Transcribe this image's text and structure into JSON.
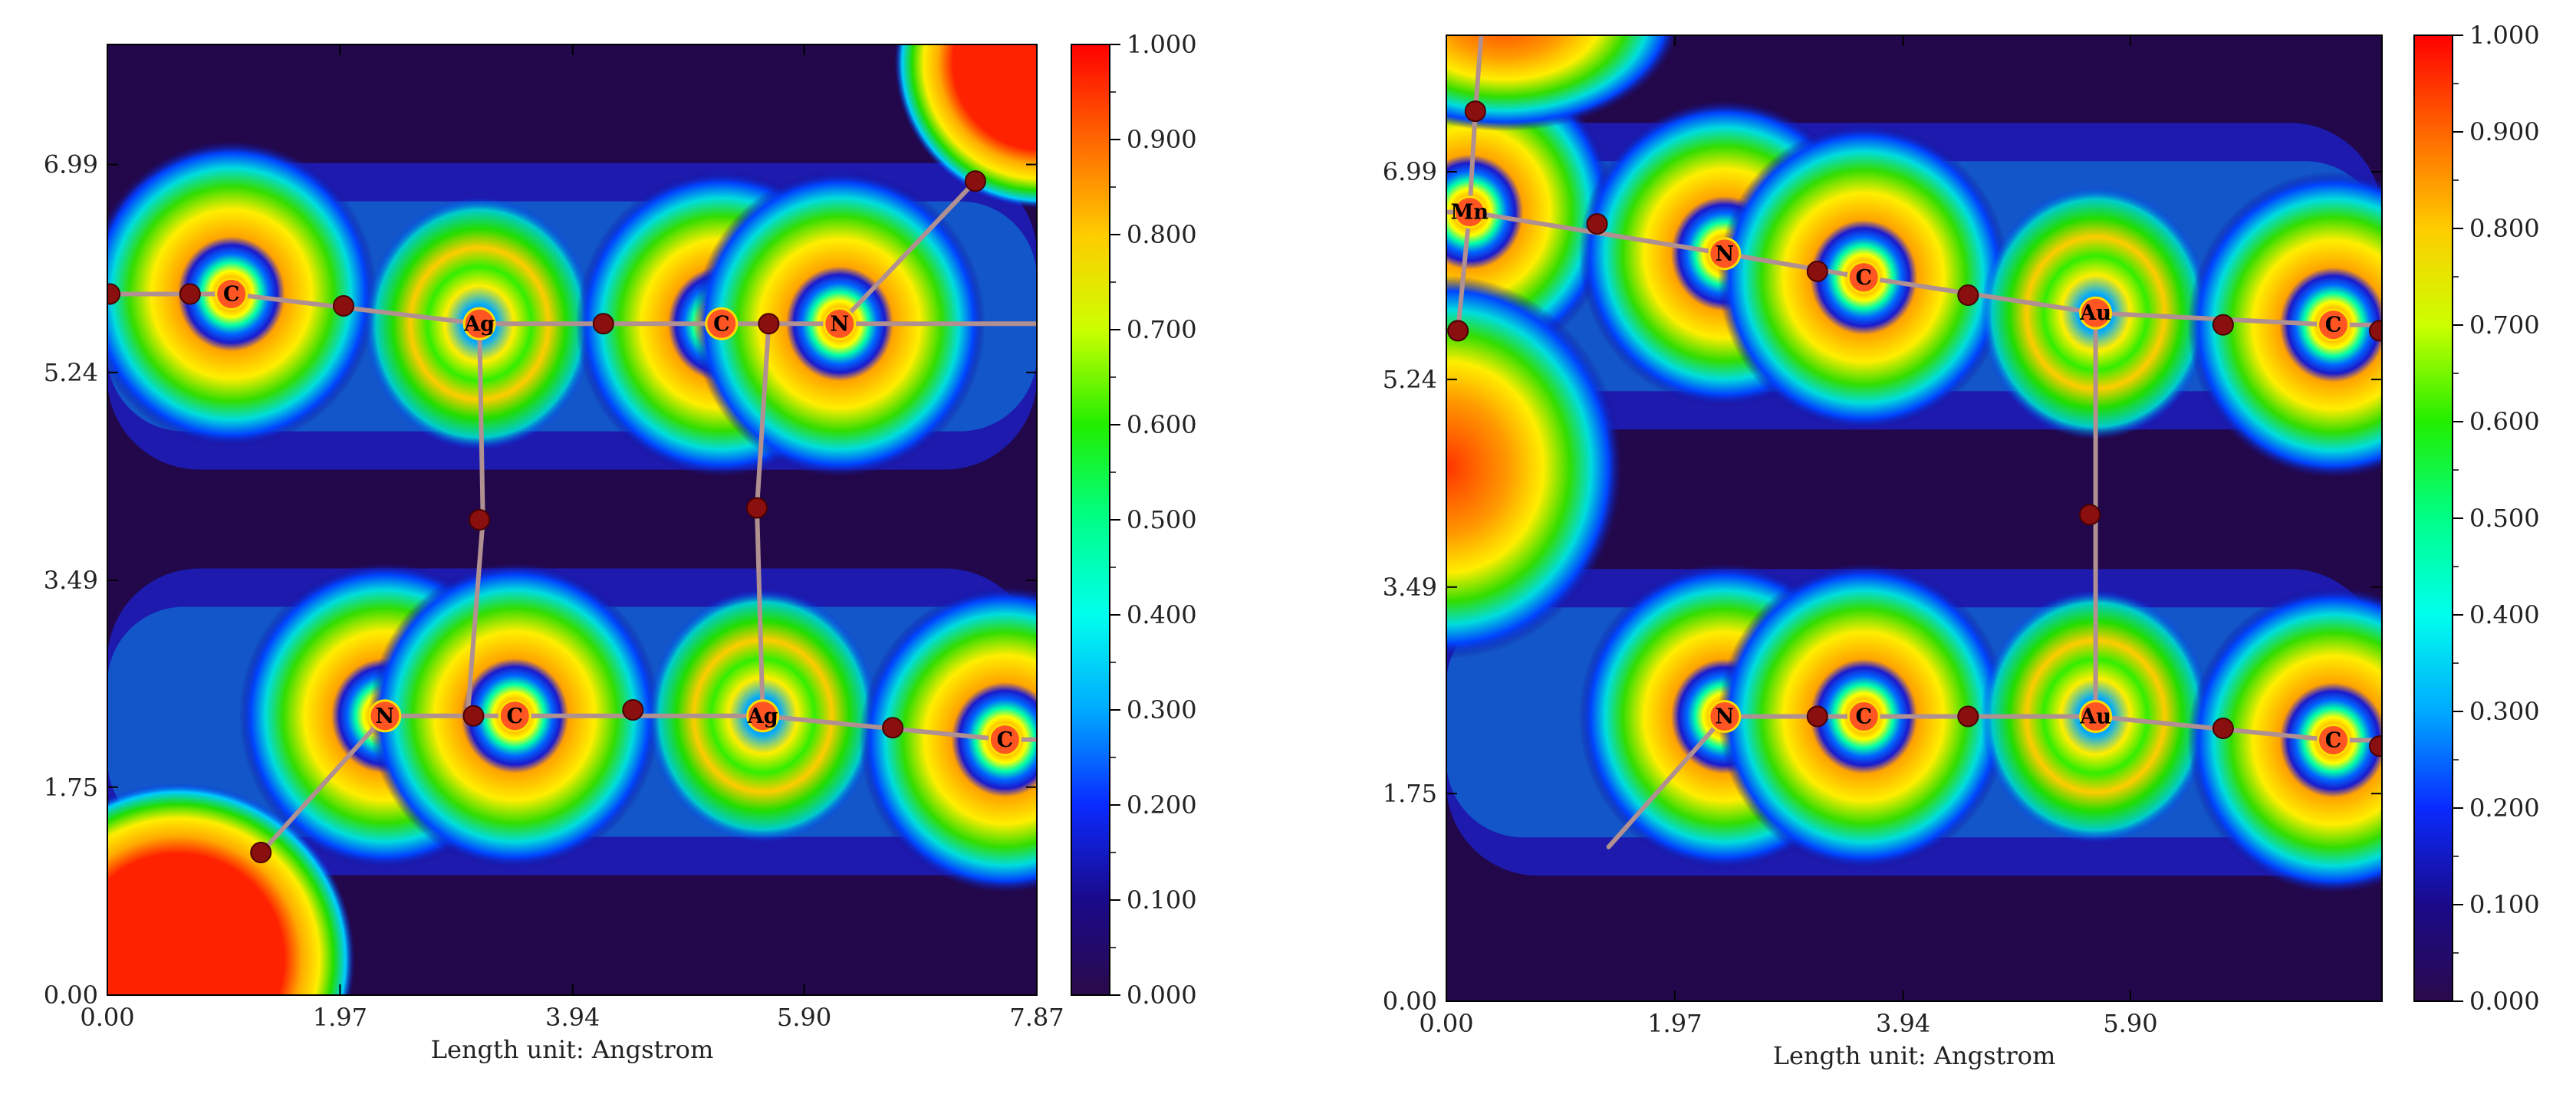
{
  "figure": {
    "panels": [
      {
        "id": "left",
        "xlabel": "Length unit: Angstrom",
        "x_ticks": [
          0.0,
          1.97,
          3.94,
          5.9,
          7.87
        ],
        "x_tick_labels": [
          "0.00",
          "1.97",
          "3.94",
          "5.90",
          "7.87"
        ],
        "y_ticks": [
          0.0,
          1.75,
          3.49,
          5.24,
          6.99
        ],
        "y_tick_labels": [
          "0.00",
          "1.75",
          "3.49",
          "5.24",
          "6.99"
        ],
        "xlim": [
          0,
          7.87
        ],
        "ylim": [
          0,
          8.0
        ],
        "colorbar": {
          "min": 0.0,
          "max": 1.0,
          "tick_labels": [
            "1.000",
            "0.900",
            "0.800",
            "0.700",
            "0.600",
            "0.500",
            "0.400",
            "0.300",
            "0.200",
            "0.100",
            "0.000"
          ]
        },
        "atoms": [
          {
            "label": "C",
            "x": 1.05,
            "y": 5.9
          },
          {
            "label": "Ag",
            "x": 3.15,
            "y": 5.65
          },
          {
            "label": "C",
            "x": 5.2,
            "y": 5.65
          },
          {
            "label": "N",
            "x": 6.2,
            "y": 5.65
          },
          {
            "label": "N",
            "x": 2.35,
            "y": 2.35
          },
          {
            "label": "C",
            "x": 3.45,
            "y": 2.35
          },
          {
            "label": "Ag",
            "x": 5.55,
            "y": 2.35
          },
          {
            "label": "C",
            "x": 7.6,
            "y": 2.15
          }
        ],
        "bcps": [
          {
            "x": 0.7,
            "y": 5.9
          },
          {
            "x": 2.0,
            "y": 5.8
          },
          {
            "x": 4.2,
            "y": 5.65
          },
          {
            "x": 5.6,
            "y": 5.65
          },
          {
            "x": 7.35,
            "y": 6.85
          },
          {
            "x": 3.15,
            "y": 4.0
          },
          {
            "x": 5.5,
            "y": 4.1
          },
          {
            "x": 3.1,
            "y": 2.35
          },
          {
            "x": 4.45,
            "y": 2.4
          },
          {
            "x": 6.65,
            "y": 2.25
          },
          {
            "x": 1.3,
            "y": 1.2
          },
          {
            "x": 0.02,
            "y": 5.9
          }
        ]
      },
      {
        "id": "right",
        "xlabel": "Length unit: Angstrom",
        "x_ticks": [
          0.0,
          1.97,
          3.94,
          5.9
        ],
        "x_tick_labels": [
          "0.00",
          "1.97",
          "3.94",
          "5.90"
        ],
        "y_ticks": [
          0.0,
          1.75,
          3.49,
          5.24,
          6.99
        ],
        "y_tick_labels": [
          "0.00",
          "1.75",
          "3.49",
          "5.24",
          "6.99"
        ],
        "xlim": [
          0,
          8.07
        ],
        "ylim": [
          0,
          8.14
        ],
        "colorbar": {
          "min": 0.0,
          "max": 1.0,
          "tick_labels": [
            "1.000",
            "0.900",
            "0.800",
            "0.700",
            "0.600",
            "0.500",
            "0.400",
            "0.300",
            "0.200",
            "0.100",
            "0.000"
          ]
        },
        "atoms": [
          {
            "label": "Mn",
            "x": 0.2,
            "y": 6.65
          },
          {
            "label": "N",
            "x": 2.4,
            "y": 6.3
          },
          {
            "label": "C",
            "x": 3.6,
            "y": 6.1
          },
          {
            "label": "Au",
            "x": 5.6,
            "y": 5.8
          },
          {
            "label": "C",
            "x": 7.65,
            "y": 5.7
          },
          {
            "label": "N",
            "x": 2.4,
            "y": 2.4
          },
          {
            "label": "C",
            "x": 3.6,
            "y": 2.4
          },
          {
            "label": "Au",
            "x": 5.6,
            "y": 2.4
          },
          {
            "label": "C",
            "x": 7.65,
            "y": 2.2
          }
        ],
        "bcps": [
          {
            "x": 0.25,
            "y": 7.5
          },
          {
            "x": 0.1,
            "y": 5.65
          },
          {
            "x": 1.3,
            "y": 6.55
          },
          {
            "x": 3.2,
            "y": 6.15
          },
          {
            "x": 4.5,
            "y": 5.95
          },
          {
            "x": 6.7,
            "y": 5.7
          },
          {
            "x": 8.05,
            "y": 5.65
          },
          {
            "x": 5.55,
            "y": 4.1
          },
          {
            "x": 3.2,
            "y": 2.4
          },
          {
            "x": 4.5,
            "y": 2.4
          },
          {
            "x": 6.7,
            "y": 2.3
          },
          {
            "x": 8.05,
            "y": 2.15
          }
        ]
      }
    ]
  },
  "chart_data": [
    {
      "type": "heatmap",
      "title": "",
      "xlabel": "Length unit: Angstrom",
      "ylabel": "",
      "xlim": [
        0,
        7.87
      ],
      "ylim": [
        0,
        8.0
      ],
      "value_range": [
        0.0,
        1.0
      ],
      "colorbar_ticks": [
        0.0,
        0.1,
        0.2,
        0.3,
        0.4,
        0.5,
        0.6,
        0.7,
        0.8,
        0.9,
        1.0
      ],
      "atoms": [
        "C",
        "Ag",
        "C",
        "N",
        "N",
        "C",
        "Ag",
        "C"
      ]
    },
    {
      "type": "heatmap",
      "title": "",
      "xlabel": "Length unit: Angstrom",
      "ylabel": "",
      "xlim": [
        0,
        8.07
      ],
      "ylim": [
        0,
        8.14
      ],
      "value_range": [
        0.0,
        1.0
      ],
      "colorbar_ticks": [
        0.0,
        0.1,
        0.2,
        0.3,
        0.4,
        0.5,
        0.6,
        0.7,
        0.8,
        0.9,
        1.0
      ],
      "atoms": [
        "Mn",
        "N",
        "C",
        "Au",
        "C",
        "N",
        "C",
        "Au",
        "C"
      ]
    }
  ],
  "colors": {
    "bond_path": "#b09090",
    "bcp": "#8a1010",
    "frame": "#000000"
  }
}
